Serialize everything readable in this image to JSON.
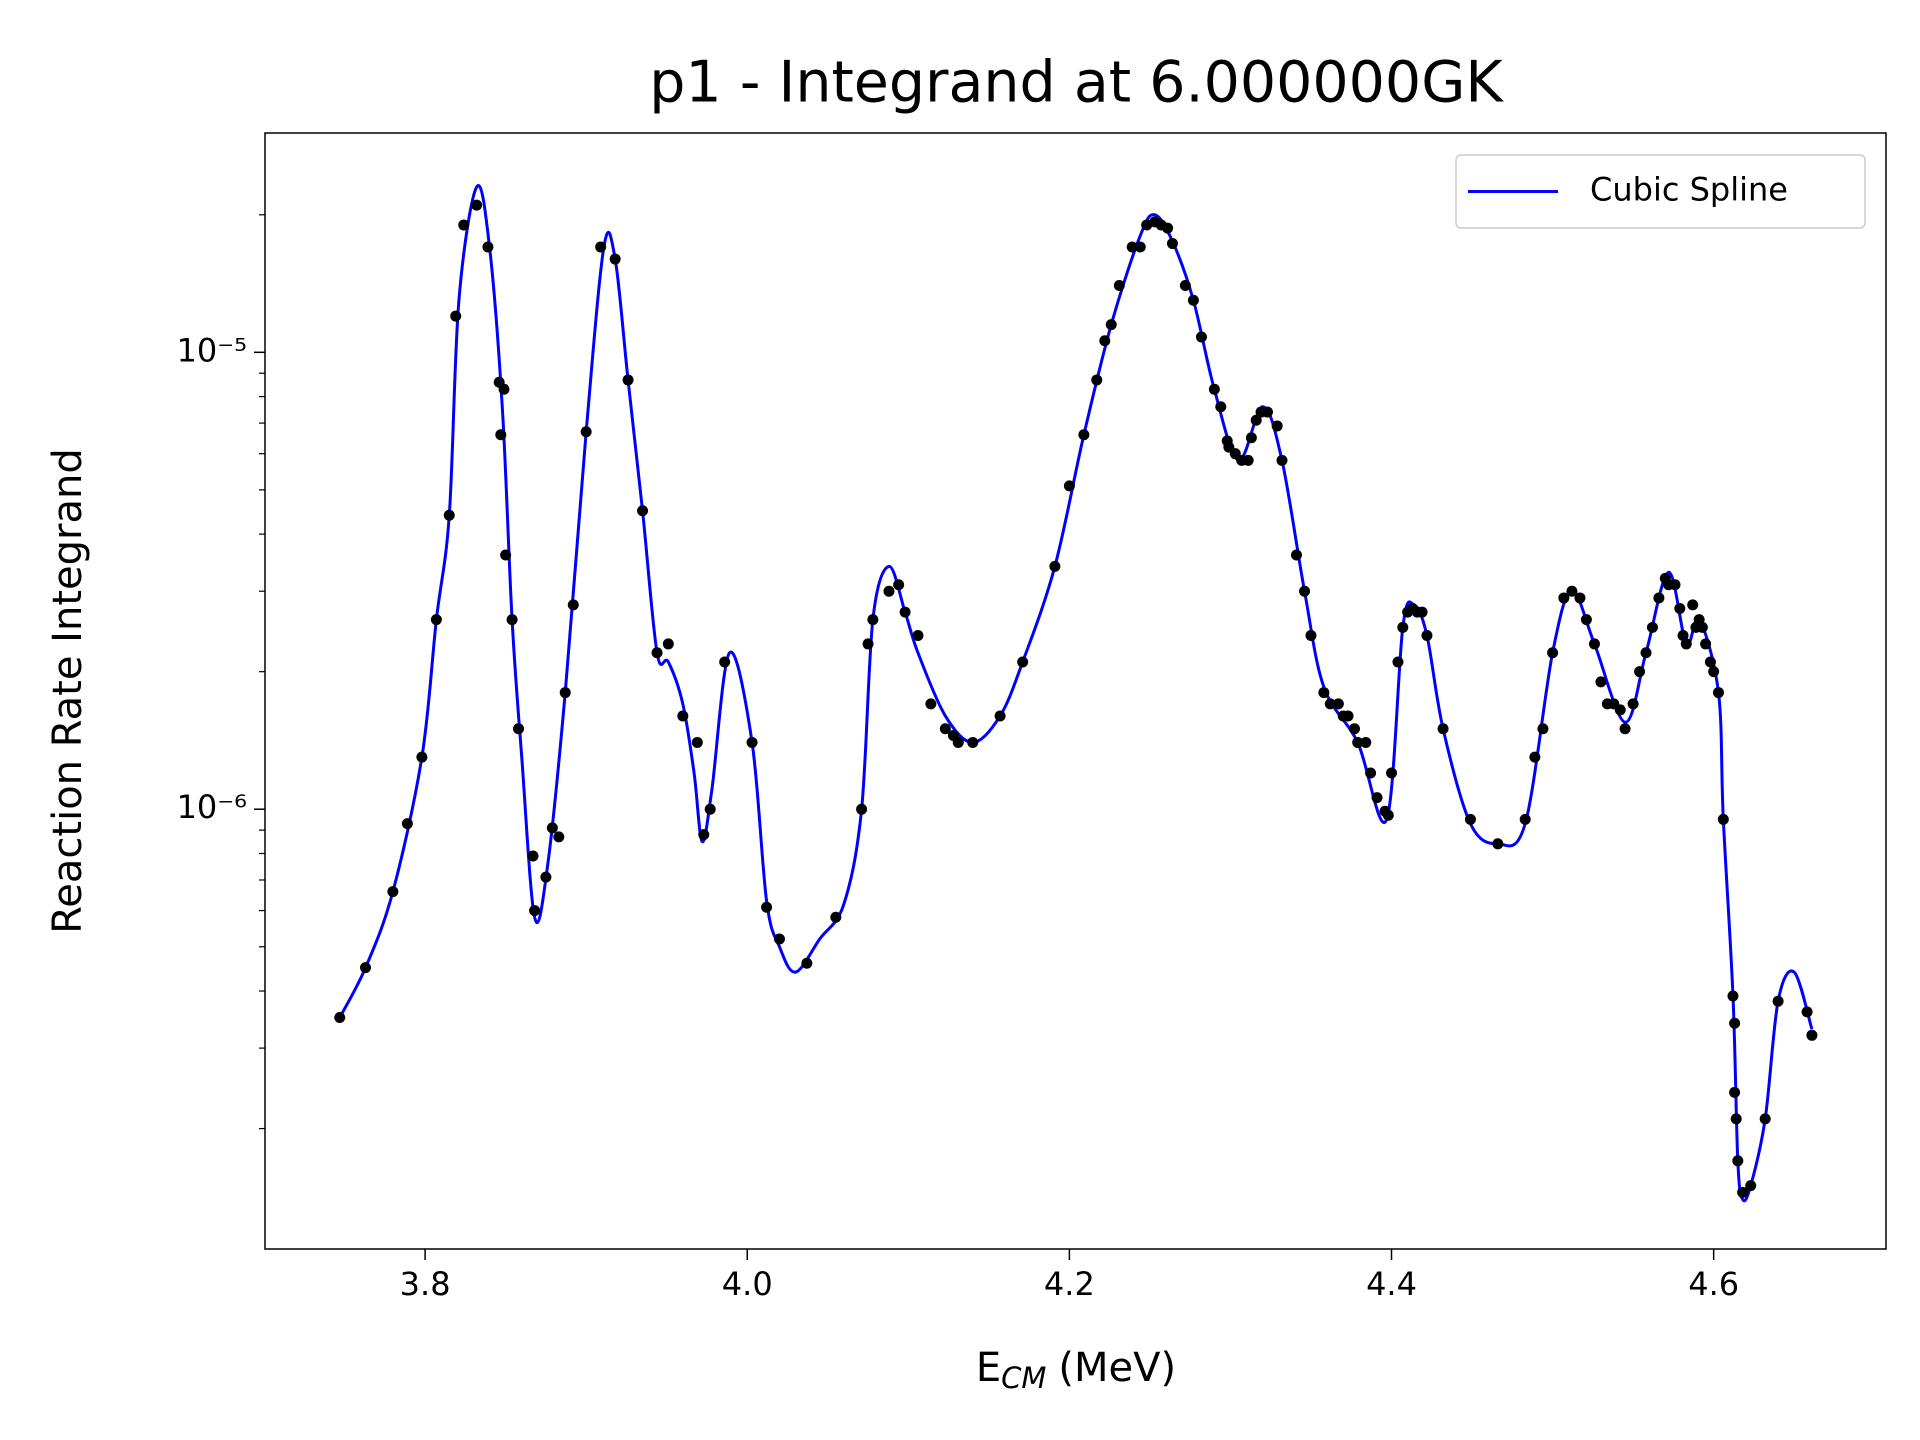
{
  "chart_data": {
    "type": "line",
    "title": "p1 - Integrand at 6.000000GK",
    "xlabel": {
      "text": "E",
      "subscript": "CM",
      "unit": "(MeV)"
    },
    "ylabel": "Reaction Rate Integrand",
    "xlim": [
      3.7006,
      4.707
    ],
    "ylim": [
      1.09e-07,
      3.02e-05
    ],
    "yscale": "log",
    "xticks": [
      3.8,
      {
        "value": 4.0,
        "label": "4.0"
      },
      4.2,
      4.4,
      4.6
    ],
    "yticks": [
      {
        "value": 1e-06,
        "label": "10⁻⁶"
      },
      {
        "value": 1e-05,
        "label": "10⁻⁵"
      }
    ],
    "yminor_ticks": [
      2e-07,
      3e-07,
      4e-07,
      5e-07,
      6e-07,
      7e-07,
      8e-07,
      9e-07,
      2e-06,
      3e-06,
      4e-06,
      5e-06,
      6e-06,
      7e-06,
      8e-06,
      9e-06,
      2e-05
    ],
    "grid": false,
    "legend": "upper right",
    "series": [
      {
        "name": "Cubic Spline",
        "type": "line",
        "color": "#0000ff",
        "x": [
          3.747,
          3.763,
          3.78,
          3.798,
          3.807,
          3.815,
          3.821,
          3.832,
          3.84,
          3.848,
          3.854,
          3.86,
          3.868,
          3.876,
          3.887,
          3.9,
          3.911,
          3.918,
          3.926,
          3.935,
          3.944,
          3.951,
          3.96,
          3.967,
          3.972,
          3.978,
          3.989,
          4.003,
          4.012,
          4.02,
          4.03,
          4.045,
          4.06,
          4.071,
          4.078,
          4.088,
          4.098,
          4.106,
          4.123,
          4.14,
          4.157,
          4.171,
          4.191,
          4.209,
          4.226,
          4.244,
          4.253,
          4.264,
          4.277,
          4.29,
          4.305,
          4.32,
          4.332,
          4.346,
          4.358,
          4.379,
          4.397,
          4.407,
          4.414,
          4.422,
          4.432,
          4.449,
          4.466,
          4.483,
          4.5,
          4.512,
          4.526,
          4.545,
          4.558,
          4.572,
          4.583,
          4.591,
          4.603,
          4.606,
          4.612,
          4.615,
          4.618,
          4.623,
          4.632,
          4.64,
          4.65,
          4.661
        ],
        "values": [
          3.5e-07,
          4.5e-07,
          6.6e-07,
          1.3e-06,
          2.6e-06,
          4.4e-06,
          1.3e-05,
          2.3e-05,
          1.7e-05,
          7.5e-06,
          2.6e-06,
          1.3e-06,
          5.8e-07,
          7.5e-07,
          1.8e-06,
          6.7e-06,
          1.7e-05,
          1.6e-05,
          8.7e-06,
          4.5e-06,
          2.2e-06,
          2.1e-06,
          1.7e-06,
          1.2e-06,
          8.5e-07,
          1.1e-06,
          2.2e-06,
          1.4e-06,
          6.3e-07,
          5e-07,
          4.4e-07,
          5.2e-07,
          6.2e-07,
          1e-06,
          2.6e-06,
          3.4e-06,
          2.7e-06,
          2.2e-06,
          1.6e-06,
          1.4e-06,
          1.6e-06,
          2.1e-06,
          3.4e-06,
          6.6e-06,
          1.15e-05,
          1.8e-05,
          2e-05,
          1.75e-05,
          1.3e-05,
          8.3e-06,
          5.8e-06,
          7.6e-06,
          5.8e-06,
          3e-06,
          1.85e-06,
          1.4e-06,
          9.5e-07,
          2.5e-06,
          2.8e-06,
          2.4e-06,
          1.5e-06,
          9.3e-07,
          8.4e-07,
          9.3e-07,
          2.2e-06,
          3e-06,
          2.3e-06,
          1.55e-06,
          2.2e-06,
          3.3e-06,
          2.3e-06,
          2.6e-06,
          1.8e-06,
          9.5e-07,
          3.9e-07,
          1.7e-07,
          1.4e-07,
          1.5e-07,
          2.1e-07,
          3.8e-07,
          4.4e-07,
          3.3e-07
        ]
      },
      {
        "type": "scatter",
        "color": "#000000",
        "x": [
          3.747,
          3.763,
          3.78,
          3.789,
          3.798,
          3.807,
          3.815,
          3.819,
          3.824,
          3.832,
          3.839,
          3.846,
          3.847,
          3.849,
          3.85,
          3.854,
          3.858,
          3.867,
          3.868,
          3.875,
          3.879,
          3.883,
          3.887,
          3.892,
          3.9,
          3.909,
          3.918,
          3.926,
          3.935,
          3.944,
          3.951,
          3.96,
          3.969,
          3.973,
          3.977,
          3.986,
          4.003,
          4.012,
          4.02,
          4.037,
          4.055,
          4.071,
          4.075,
          4.078,
          4.088,
          4.094,
          4.098,
          4.106,
          4.114,
          4.123,
          4.128,
          4.131,
          4.14,
          4.157,
          4.171,
          4.191,
          4.2,
          4.209,
          4.217,
          4.222,
          4.226,
          4.231,
          4.239,
          4.244,
          4.248,
          4.253,
          4.257,
          4.261,
          4.264,
          4.272,
          4.277,
          4.282,
          4.29,
          4.294,
          4.298,
          4.299,
          4.303,
          4.307,
          4.311,
          4.313,
          4.316,
          4.319,
          4.323,
          4.329,
          4.332,
          4.341,
          4.346,
          4.35,
          4.358,
          4.362,
          4.367,
          4.37,
          4.373,
          4.377,
          4.379,
          4.384,
          4.387,
          4.391,
          4.396,
          4.398,
          4.4,
          4.404,
          4.407,
          4.41,
          4.413,
          4.416,
          4.419,
          4.422,
          4.432,
          4.449,
          4.466,
          4.483,
          4.489,
          4.494,
          4.5,
          4.507,
          4.512,
          4.517,
          4.521,
          4.526,
          4.53,
          4.534,
          4.538,
          4.542,
          4.545,
          4.55,
          4.554,
          4.558,
          4.562,
          4.566,
          4.57,
          4.572,
          4.576,
          4.579,
          4.581,
          4.583,
          4.587,
          4.589,
          4.591,
          4.593,
          4.595,
          4.598,
          4.6,
          4.603,
          4.606,
          4.612,
          4.613,
          4.613,
          4.614,
          4.615,
          4.618,
          4.623,
          4.632,
          4.64,
          4.658,
          4.661
        ],
        "values": [
          3.5e-07,
          4.5e-07,
          6.6e-07,
          9.3e-07,
          1.3e-06,
          2.6e-06,
          4.4e-06,
          1.2e-05,
          1.9e-05,
          2.1e-05,
          1.7e-05,
          8.6e-06,
          6.6e-06,
          8.3e-06,
          3.6e-06,
          2.6e-06,
          1.5e-06,
          7.9e-07,
          6e-07,
          7.1e-07,
          9.1e-07,
          8.7e-07,
          1.8e-06,
          2.8e-06,
          6.7e-06,
          1.7e-05,
          1.6e-05,
          8.7e-06,
          4.5e-06,
          2.2e-06,
          2.3e-06,
          1.6e-06,
          1.4e-06,
          8.8e-07,
          1e-06,
          2.1e-06,
          1.4e-06,
          6.1e-07,
          5.2e-07,
          4.6e-07,
          5.8e-07,
          1e-06,
          2.3e-06,
          2.6e-06,
          3e-06,
          3.1e-06,
          2.7e-06,
          2.4e-06,
          1.7e-06,
          1.5e-06,
          1.45e-06,
          1.4e-06,
          1.4e-06,
          1.6e-06,
          2.1e-06,
          3.4e-06,
          5.1e-06,
          6.6e-06,
          8.7e-06,
          1.06e-05,
          1.15e-05,
          1.4e-05,
          1.7e-05,
          1.7e-05,
          1.9e-05,
          1.93e-05,
          1.9e-05,
          1.87e-05,
          1.73e-05,
          1.4e-05,
          1.3e-05,
          1.08e-05,
          8.3e-06,
          7.6e-06,
          6.4e-06,
          6.2e-06,
          6e-06,
          5.8e-06,
          5.8e-06,
          6.5e-06,
          7.1e-06,
          7.4e-06,
          7.4e-06,
          6.9e-06,
          5.8e-06,
          3.6e-06,
          3e-06,
          2.4e-06,
          1.8e-06,
          1.7e-06,
          1.7e-06,
          1.6e-06,
          1.6e-06,
          1.5e-06,
          1.4e-06,
          1.4e-06,
          1.2e-06,
          1.06e-06,
          9.9e-07,
          9.7e-07,
          1.2e-06,
          2.1e-06,
          2.5e-06,
          2.7e-06,
          2.75e-06,
          2.7e-06,
          2.7e-06,
          2.4e-06,
          1.5e-06,
          9.5e-07,
          8.4e-07,
          9.5e-07,
          1.3e-06,
          1.5e-06,
          2.2e-06,
          2.9e-06,
          3e-06,
          2.9e-06,
          2.6e-06,
          2.3e-06,
          1.9e-06,
          1.7e-06,
          1.7e-06,
          1.65e-06,
          1.5e-06,
          1.7e-06,
          2e-06,
          2.2e-06,
          2.5e-06,
          2.9e-06,
          3.2e-06,
          3.1e-06,
          3.1e-06,
          2.75e-06,
          2.4e-06,
          2.3e-06,
          2.8e-06,
          2.5e-06,
          2.6e-06,
          2.5e-06,
          2.3e-06,
          2.1e-06,
          2e-06,
          1.8e-06,
          9.5e-07,
          3.9e-07,
          3.4e-07,
          2.4e-07,
          2.1e-07,
          1.7e-07,
          1.45e-07,
          1.5e-07,
          2.1e-07,
          3.8e-07,
          3.6e-07,
          3.2e-07
        ]
      }
    ]
  }
}
